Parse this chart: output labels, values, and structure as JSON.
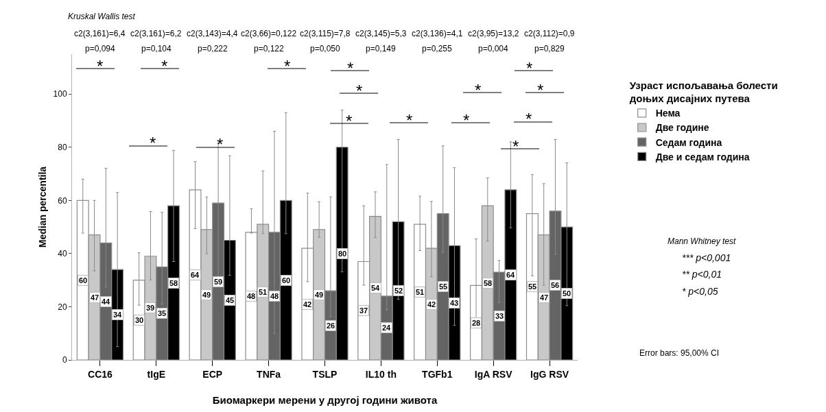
{
  "chart_data": {
    "type": "bar",
    "xlabel": "Биомаркери мерени у другој години живота",
    "ylabel": "Median percentila",
    "legend_title": "Узраст испољавања болести доњих дисајних путева",
    "categories": [
      "CC16",
      "tIgE",
      "ECP",
      "TNFa",
      "TSLP",
      "IL10 th",
      "TGFb1",
      "IgA RSV",
      "IgG RSV"
    ],
    "series": [
      {
        "name": "Нема",
        "color": "#ffffff",
        "values": [
          60,
          30,
          64,
          48,
          42,
          37,
          51,
          28,
          55
        ],
        "errors": [
          [
            47.7,
            68.0
          ],
          [
            20.6,
            40.3
          ],
          [
            49.4,
            74.6
          ],
          [
            47.7,
            56.9
          ],
          [
            29.4,
            62.7
          ],
          [
            28.1,
            58.0
          ],
          [
            41.1,
            61.6
          ],
          [
            12.5,
            45.5
          ],
          [
            31.6,
            69.7
          ]
        ]
      },
      {
        "name": "Две године",
        "color": "#c8c8c8",
        "values": [
          47,
          39,
          49,
          51,
          49,
          54,
          42,
          58,
          47
        ],
        "errors": [
          [
            33.5,
            60.0
          ],
          [
            30.1,
            55.8
          ],
          [
            39.9,
            61.3
          ],
          [
            47.5,
            71.1
          ],
          [
            46.1,
            59.5
          ],
          [
            46.0,
            63.2
          ],
          [
            31.3,
            59.6
          ],
          [
            44.7,
            68.5
          ],
          [
            28.1,
            66.3
          ]
        ]
      },
      {
        "name": "Седам година",
        "color": "#646464",
        "values": [
          44,
          35,
          59,
          48,
          26,
          24,
          55,
          33,
          56
        ],
        "errors": [
          [
            27.5,
            72.1
          ],
          [
            21.0,
            55.5
          ],
          [
            31.4,
            81.5
          ],
          [
            10,
            86.0
          ],
          [
            16.3,
            61.3
          ],
          [
            18.8,
            73.5
          ],
          [
            40.4,
            80.5
          ],
          [
            21.6,
            37.4
          ],
          [
            39.7,
            82.9
          ]
        ]
      },
      {
        "name": "Две и седам година",
        "color": "#000000",
        "values": [
          34,
          58,
          45,
          60,
          80,
          52,
          43,
          64,
          50
        ],
        "errors": [
          [
            5,
            63.0
          ],
          [
            37,
            78.8
          ],
          [
            31.8,
            76.8
          ],
          [
            47.5,
            93.0
          ],
          [
            33.1,
            94.0
          ],
          [
            22.8,
            82.9
          ],
          [
            13,
            72.3
          ],
          [
            49.7,
            82.0
          ],
          [
            20.4,
            74.1
          ]
        ]
      }
    ],
    "data_labels": true,
    "ylim": [
      0,
      115
    ],
    "yticks": [
      0,
      20,
      40,
      60,
      80,
      100
    ],
    "grid": false,
    "legend": "top right",
    "annotations": [
      "Kruskal Wallis test",
      "c2(3,161)=6,4",
      "c2(3,161)=6,2",
      "c2(3,143)=4,4",
      "c2(3,66)=0,122",
      "c2(3,115)=7,8",
      "c2(3,145)=5,3",
      "c2(3,136)=4,1",
      "c2(3,95)=13,2",
      "c2(3,112)=0,9",
      "p=0,094",
      "p=0,104",
      "p=0,222",
      "p=0,122",
      "p=0,050",
      "p=0,149",
      "p=0,255",
      "p=0,004",
      "p=0,829",
      "*",
      "*",
      "*",
      "*",
      "*",
      "*",
      "*",
      "*",
      "*",
      "*",
      "*",
      "*",
      "*",
      "*",
      "*",
      "Mann Whitney test",
      "*** p<0,001",
      "** p<0,01",
      "* p<0,05",
      "Error bars: 95,00% CI"
    ]
  }
}
